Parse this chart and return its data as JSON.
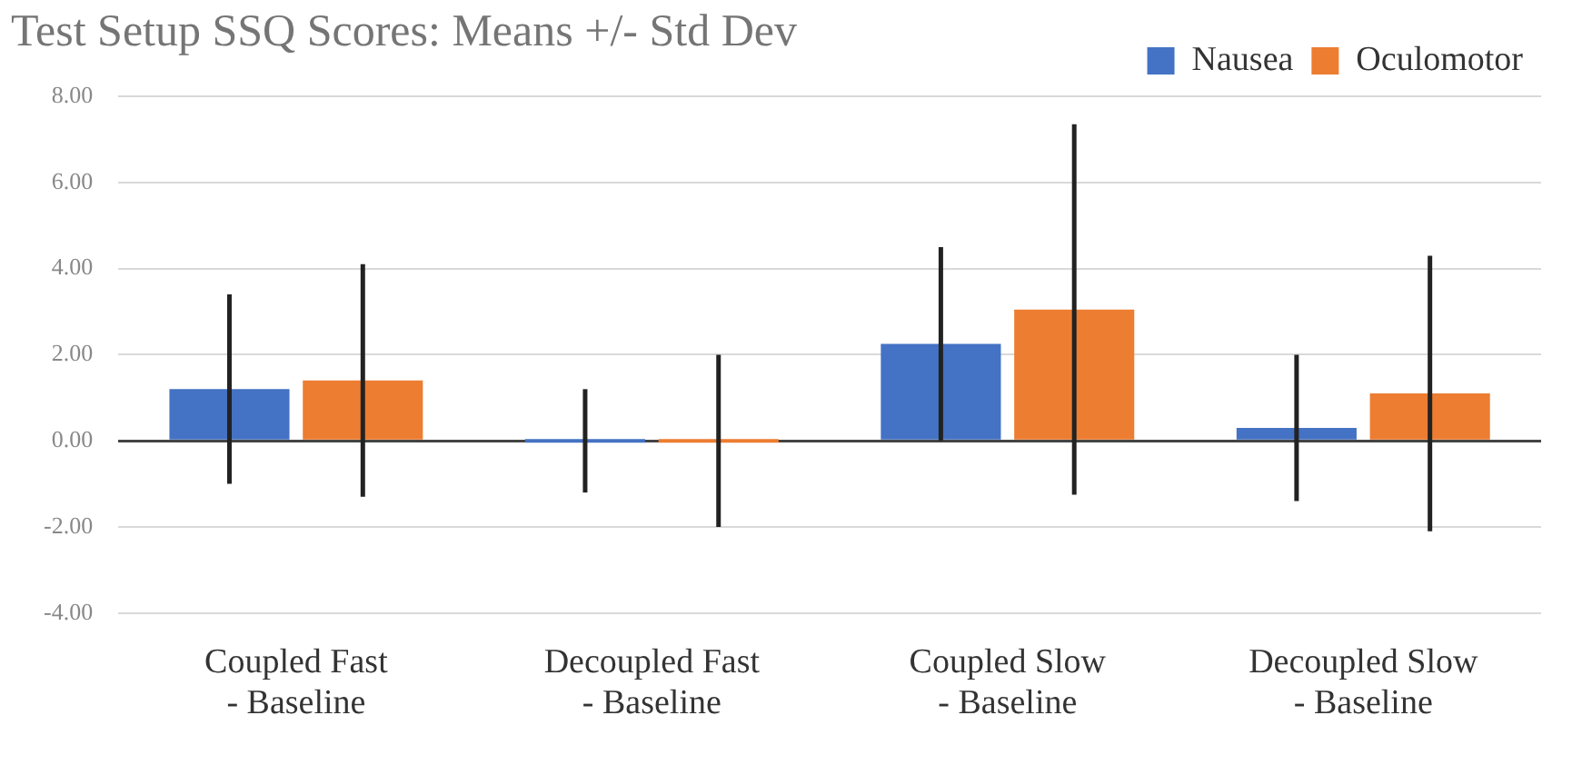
{
  "chart_data": {
    "type": "bar",
    "title": "Test Setup SSQ Scores: Means +/- Std Dev",
    "categories": [
      "Coupled Fast\n- Baseline",
      "Decoupled Fast\n- Baseline",
      "Coupled Slow\n- Baseline",
      "Decoupled Slow\n- Baseline"
    ],
    "series": [
      {
        "name": "Nausea",
        "color": "#4472c4",
        "values": [
          1.2,
          0,
          2.25,
          0.3
        ],
        "errors": [
          2.2,
          1.2,
          2.25,
          1.7
        ]
      },
      {
        "name": "Oculomotor",
        "color": "#ed7d31",
        "values": [
          1.4,
          0,
          3.05,
          1.1
        ],
        "errors": [
          2.7,
          2.0,
          4.3,
          3.2
        ]
      }
    ],
    "ylim": [
      -4,
      8
    ],
    "yticks": [
      {
        "value": -4,
        "label": "-4.00"
      },
      {
        "value": -2,
        "label": "-2.00"
      },
      {
        "value": 0,
        "label": "0.00"
      },
      {
        "value": 2,
        "label": "2.00"
      },
      {
        "value": 4,
        "label": "4.00"
      },
      {
        "value": 6,
        "label": "6.00"
      },
      {
        "value": 8,
        "label": "8.00"
      }
    ],
    "grid": "y",
    "legend": "top right"
  }
}
